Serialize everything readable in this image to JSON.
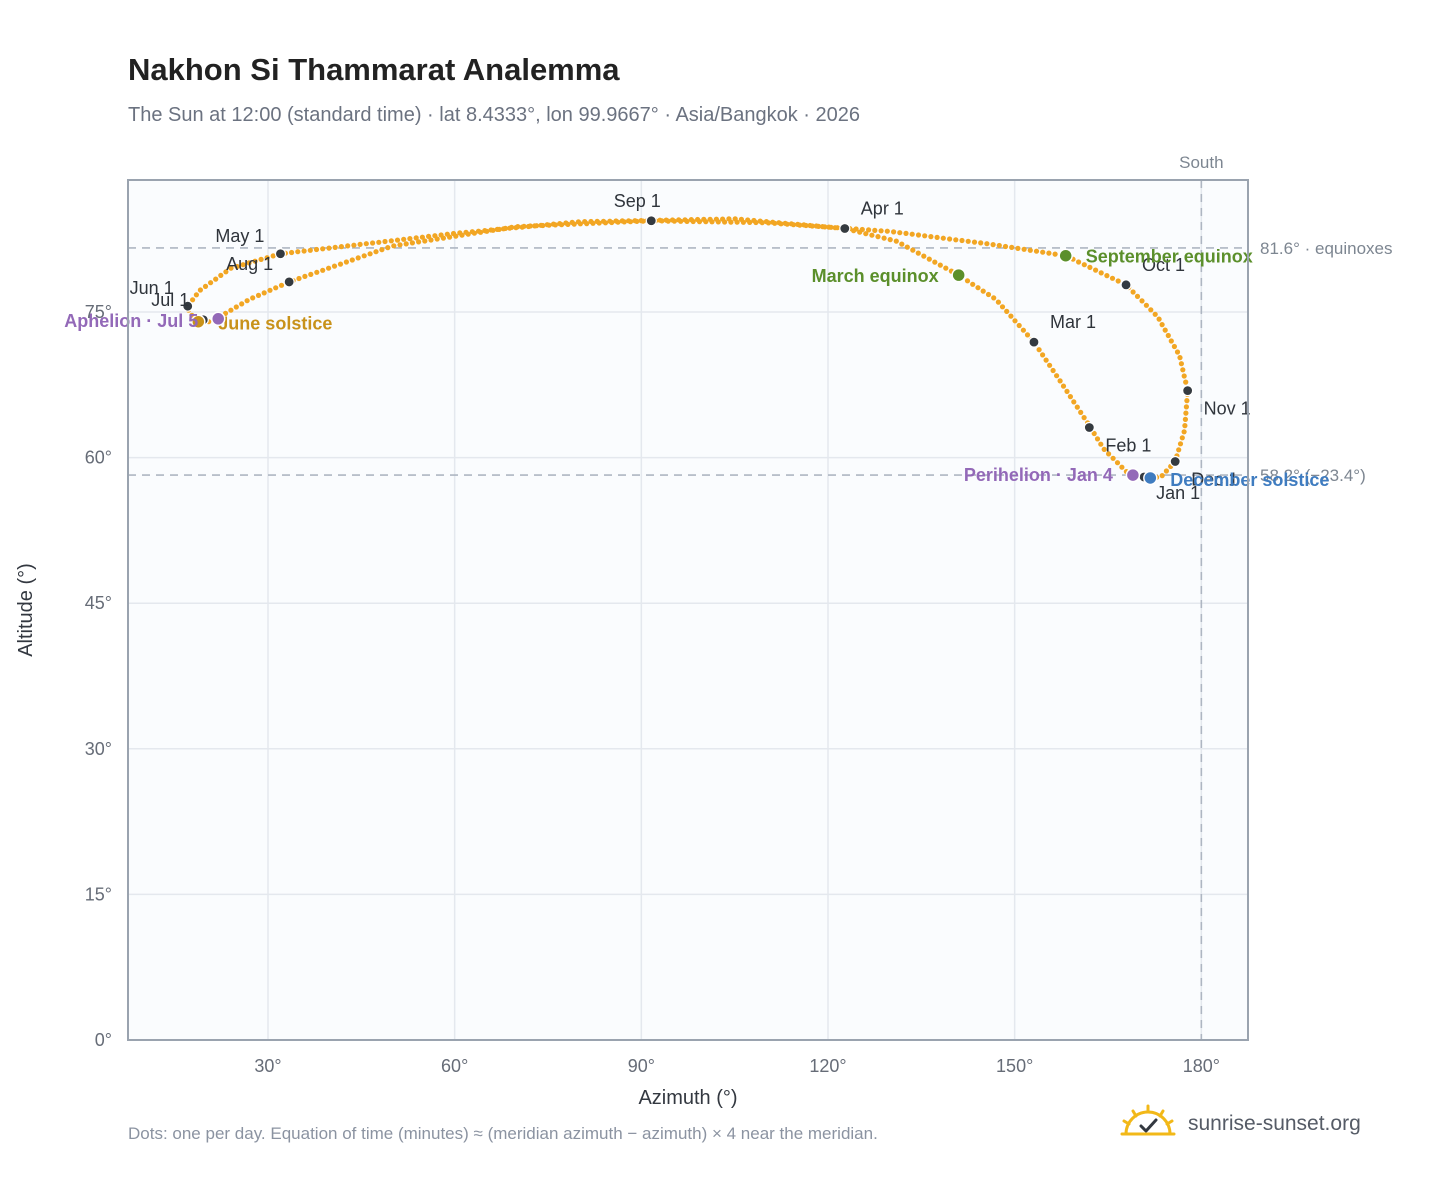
{
  "header": {
    "title": "Nakhon Si Thammarat Analemma",
    "subtitle": "The Sun at 12:00 (standard time) · lat 8.4333°, lon 99.9667° · Asia/Bangkok · 2026"
  },
  "footer": {
    "note": "Dots: one per day. Equation of time (minutes) ≈ (meridian azimuth − azimuth) × 4 near the meridian.",
    "brand": "sunrise-sunset.org",
    "brand_icon": "sun-logo-icon"
  },
  "colors": {
    "curve": "#f2a623",
    "month_marker": "#343a40",
    "equinox": "#5b8f2b",
    "june_solstice": "#c8921a",
    "december_solstice": "#3f7cc0",
    "apsis": "#9369b8",
    "plot_bg": "#fafcfe",
    "grid": "#e4e8ee",
    "reference_line": "#aeb6c2",
    "frame": "#9aa3af"
  },
  "chart_data": {
    "type": "scatter",
    "xlabel": "Azimuth (°)",
    "ylabel": "Altitude (°)",
    "xlim": [
      7.5,
      187.5
    ],
    "ylim": [
      0,
      88.6
    ],
    "xticks": [
      30,
      60,
      90,
      120,
      150,
      180
    ],
    "xtick_labels": [
      "30°",
      "60°",
      "90°",
      "120°",
      "150°",
      "180°"
    ],
    "yticks": [
      0,
      15,
      30,
      45,
      60,
      75
    ],
    "ytick_labels": [
      "0°",
      "15°",
      "30°",
      "45°",
      "60°",
      "75°"
    ],
    "grid": true,
    "reference_lines": [
      {
        "orientation": "vertical",
        "value": 180,
        "label": "South"
      },
      {
        "orientation": "horizontal",
        "value": 81.6,
        "label": "81.6° · equinoxes"
      },
      {
        "orientation": "horizontal",
        "value": 58.2,
        "label": "58.2° (−23.4°)"
      }
    ],
    "path_keyframes": [
      {
        "az": 171.8,
        "alt": 57.9
      },
      {
        "az": 168.2,
        "alt": 58.4
      },
      {
        "az": 164.3,
        "alt": 60.9
      },
      {
        "az": 162.1,
        "alt": 63.2
      },
      {
        "az": 157.0,
        "alt": 68.2
      },
      {
        "az": 153.1,
        "alt": 71.9
      },
      {
        "az": 147.0,
        "alt": 76.3
      },
      {
        "az": 141.0,
        "alt": 78.8
      },
      {
        "az": 131.0,
        "alt": 82.3
      },
      {
        "az": 122.7,
        "alt": 83.6
      },
      {
        "az": 105.0,
        "alt": 84.6
      },
      {
        "az": 80.0,
        "alt": 84.3
      },
      {
        "az": 60.0,
        "alt": 83.1
      },
      {
        "az": 40.0,
        "alt": 81.6
      },
      {
        "az": 32.0,
        "alt": 81.0
      },
      {
        "az": 24.0,
        "alt": 79.5
      },
      {
        "az": 19.0,
        "alt": 77.2
      },
      {
        "az": 17.0,
        "alt": 75.5
      },
      {
        "az": 17.5,
        "alt": 74.8
      },
      {
        "az": 18.8,
        "alt": 74.1
      },
      {
        "az": 20.5,
        "alt": 74.0
      },
      {
        "az": 22.5,
        "alt": 74.6
      },
      {
        "az": 27.0,
        "alt": 76.3
      },
      {
        "az": 33.4,
        "alt": 78.1
      },
      {
        "az": 50.0,
        "alt": 81.8
      },
      {
        "az": 70.0,
        "alt": 83.8
      },
      {
        "az": 91.6,
        "alt": 84.4
      },
      {
        "az": 110.0,
        "alt": 84.2
      },
      {
        "az": 130.0,
        "alt": 83.3
      },
      {
        "az": 146.0,
        "alt": 82.0
      },
      {
        "az": 158.2,
        "alt": 80.8
      },
      {
        "az": 167.9,
        "alt": 77.8
      },
      {
        "az": 173.0,
        "alt": 74.5
      },
      {
        "az": 176.5,
        "alt": 70.5
      },
      {
        "az": 177.8,
        "alt": 66.9
      },
      {
        "az": 177.3,
        "alt": 62.8
      },
      {
        "az": 175.8,
        "alt": 59.6
      },
      {
        "az": 173.5,
        "alt": 58.0
      },
      {
        "az": 171.8,
        "alt": 57.9
      }
    ],
    "month_markers": [
      {
        "label": "Jan 1",
        "az": 170.8,
        "alt": 58.0,
        "anchor": "start",
        "dx": 12,
        "dy": 22
      },
      {
        "label": "Feb 1",
        "az": 162.0,
        "alt": 63.1,
        "anchor": "start",
        "dx": 16,
        "dy": 24
      },
      {
        "label": "Mar 1",
        "az": 153.1,
        "alt": 71.9,
        "anchor": "start",
        "dx": 16,
        "dy": -14
      },
      {
        "label": "Apr 1",
        "az": 122.7,
        "alt": 83.6,
        "anchor": "start",
        "dx": 16,
        "dy": -14
      },
      {
        "label": "May 1",
        "az": 32.0,
        "alt": 81.0,
        "anchor": "end",
        "dx": -16,
        "dy": -12
      },
      {
        "label": "Jun 1",
        "az": 17.1,
        "alt": 75.6,
        "anchor": "end",
        "dx": -14,
        "dy": -12
      },
      {
        "label": "Jul 1",
        "az": 19.6,
        "alt": 74.2,
        "anchor": "end",
        "dx": -14,
        "dy": -14
      },
      {
        "label": "Aug 1",
        "az": 33.4,
        "alt": 78.1,
        "anchor": "end",
        "dx": -16,
        "dy": -12
      },
      {
        "label": "Sep 1",
        "az": 91.6,
        "alt": 84.4,
        "anchor": "middle",
        "dx": -14,
        "dy": -14
      },
      {
        "label": "Oct 1",
        "az": 167.9,
        "alt": 77.8,
        "anchor": "start",
        "dx": 16,
        "dy": -14
      },
      {
        "label": "Nov 1",
        "az": 177.8,
        "alt": 66.9,
        "anchor": "start",
        "dx": 16,
        "dy": 24
      },
      {
        "label": "Dec 1",
        "az": 175.8,
        "alt": 59.6,
        "anchor": "start",
        "dx": 16,
        "dy": 24
      }
    ],
    "events": [
      {
        "label": "March equinox",
        "az": 141.0,
        "alt": 78.8,
        "color_key": "equinox",
        "anchor": "end",
        "dx": -20,
        "dy": 7
      },
      {
        "label": "September equinox",
        "az": 158.2,
        "alt": 80.8,
        "color_key": "equinox",
        "anchor": "start",
        "dx": 20,
        "dy": 7
      },
      {
        "label": "June solstice",
        "az": 18.8,
        "alt": 74.0,
        "color_key": "june_solstice",
        "anchor": "start",
        "dx": 20,
        "dy": 8
      },
      {
        "label": "December solstice",
        "az": 171.8,
        "alt": 57.9,
        "color_key": "december_solstice",
        "anchor": "start",
        "dx": 20,
        "dy": 8
      },
      {
        "label": "Aphelion · Jul 5",
        "az": 22.0,
        "alt": 74.3,
        "color_key": "apsis",
        "anchor": "end",
        "dx": -20,
        "dy": 8
      },
      {
        "label": "Perihelion · Jan 4",
        "az": 169.0,
        "alt": 58.2,
        "color_key": "apsis",
        "anchor": "end",
        "dx": -20,
        "dy": 6
      }
    ]
  }
}
